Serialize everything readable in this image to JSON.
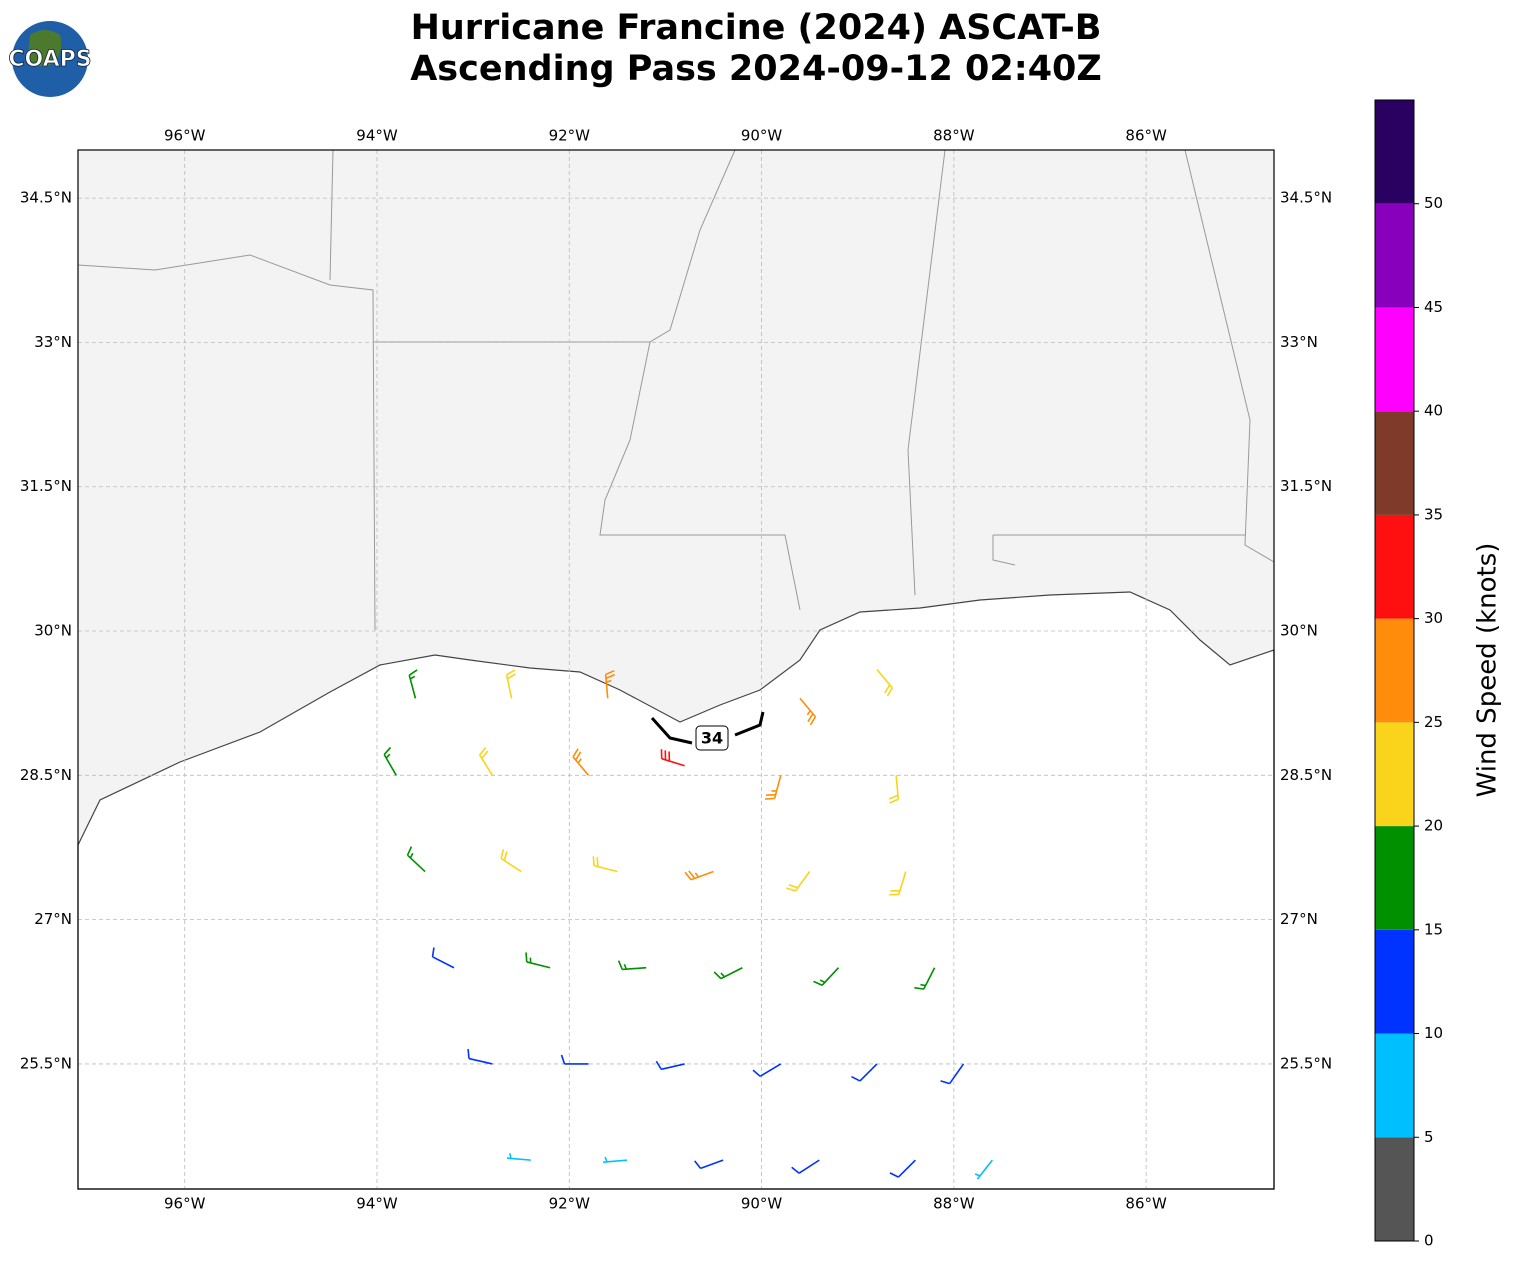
{
  "logo_text": "COAPS",
  "chart_data": {
    "type": "wind_barbs",
    "title": "Hurricane Francine (2024) ASCAT-B",
    "subtitle": "Ascending Pass 2024-09-12 02:40Z",
    "xlim": [
      -97.11,
      -84.67
    ],
    "ylim": [
      24.2,
      35.0
    ],
    "xticks": [
      {
        "value": -96,
        "label": "96°W"
      },
      {
        "value": -94,
        "label": "94°W"
      },
      {
        "value": -92,
        "label": "92°W"
      },
      {
        "value": -90,
        "label": "90°W"
      },
      {
        "value": -88,
        "label": "88°W"
      },
      {
        "value": -86,
        "label": "86°W"
      }
    ],
    "yticks": [
      {
        "value": 25.5,
        "label": "25.5°N"
      },
      {
        "value": 27,
        "label": "27°N"
      },
      {
        "value": 28.5,
        "label": "28.5°N"
      },
      {
        "value": 30,
        "label": "30°N"
      },
      {
        "value": 31.5,
        "label": "31.5°N"
      },
      {
        "value": 33,
        "label": "33°N"
      },
      {
        "value": 34.5,
        "label": "34.5°N"
      }
    ],
    "grid": true,
    "contour_level": 34,
    "barbs": {
      "lon": [
        -93.6,
        -92.6,
        -91.6,
        -89.6,
        -88.8,
        -93.8,
        -92.8,
        -91.8,
        -90.8,
        -89.8,
        -88.6,
        -93.5,
        -92.5,
        -91.5,
        -90.5,
        -89.5,
        -88.5,
        -93.2,
        -92.2,
        -91.2,
        -90.2,
        -89.2,
        -88.2,
        -92.8,
        -91.8,
        -90.8,
        -89.8,
        -88.8,
        -87.9,
        -92.4,
        -91.4,
        -90.4,
        -89.4,
        -88.4,
        -87.6
      ],
      "lat": [
        29.3,
        29.3,
        29.3,
        29.3,
        29.6,
        28.5,
        28.5,
        28.5,
        28.6,
        28.5,
        28.5,
        27.5,
        27.5,
        27.5,
        27.5,
        27.5,
        27.5,
        26.5,
        26.5,
        26.5,
        26.5,
        26.5,
        26.5,
        25.5,
        25.5,
        25.5,
        25.5,
        25.5,
        25.5,
        24.5,
        24.5,
        24.5,
        24.5,
        24.5,
        24.5
      ],
      "speed": [
        17,
        22,
        27,
        28,
        23,
        16,
        21,
        26,
        32,
        29,
        23,
        16,
        20,
        24,
        25,
        24,
        21,
        13,
        17,
        19,
        19,
        18,
        16,
        11,
        13,
        12,
        12,
        13,
        12,
        8,
        9,
        10,
        11,
        10,
        9
      ],
      "direction": [
        345,
        348,
        355,
        140,
        140,
        330,
        328,
        320,
        287,
        195,
        175,
        313,
        303,
        284,
        250,
        216,
        197,
        297,
        284,
        266,
        243,
        223,
        207,
        283,
        270,
        257,
        239,
        225,
        215,
        275,
        265,
        250,
        237,
        225,
        218
      ]
    },
    "colorbar": {
      "label": "Wind Speed (knots)",
      "lim": [
        0,
        55
      ],
      "ticks": [
        0,
        5,
        10,
        15,
        20,
        25,
        30,
        35,
        40,
        45,
        50
      ],
      "colors": [
        "#555555",
        "#00bfff",
        "#0033ff",
        "#009000",
        "#f9d41a",
        "#ff8c0a",
        "#ff1010",
        "#7f3a2a",
        "#ff00ff",
        "#8800bb",
        "#2a0060"
      ]
    }
  }
}
